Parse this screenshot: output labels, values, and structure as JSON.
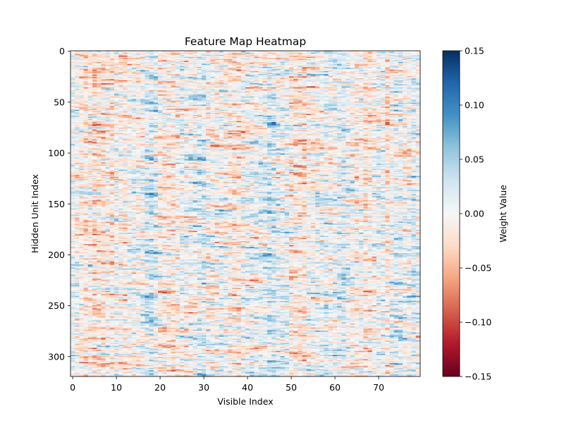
{
  "chart_data": {
    "type": "heatmap",
    "title": "Feature Map Heatmap",
    "xlabel": "Visible Index",
    "ylabel": "Hidden Unit Index",
    "rows": 320,
    "cols": 80,
    "xlim": [
      -0.5,
      79.5
    ],
    "ylim": [
      319.5,
      -0.5
    ],
    "x_ticks": [
      "0",
      "10",
      "20",
      "30",
      "40",
      "50",
      "60",
      "70"
    ],
    "y_ticks": [
      "0",
      "50",
      "100",
      "150",
      "200",
      "250",
      "300"
    ],
    "colormap": "RdBu",
    "colormap_stops": [
      "#67001f",
      "#b2182b",
      "#d6604d",
      "#f4a582",
      "#fddbc7",
      "#f7f7f7",
      "#d1e5f0",
      "#92c5de",
      "#4393c3",
      "#2166ac",
      "#053061"
    ],
    "value_range": [
      -0.15,
      0.15
    ],
    "value_distribution": "approximately random, mostly within ±0.05",
    "colorbar": {
      "label": "Weight Value",
      "ticks": [
        "0.15",
        "0.10",
        "0.05",
        "0.00",
        "−0.05",
        "−0.10",
        "−0.15"
      ]
    },
    "grid": false
  }
}
